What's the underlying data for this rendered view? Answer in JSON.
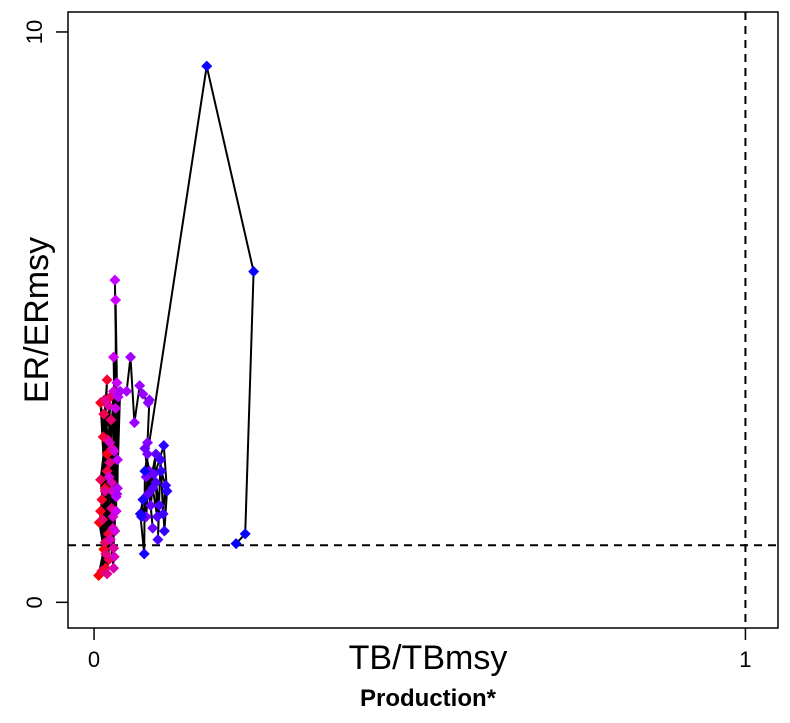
{
  "chart_data": {
    "type": "scatter",
    "connected": true,
    "title": "",
    "xlabel": "TB/TBmsy",
    "ylabel": "ER/ERmsy",
    "subtitle": "Production*",
    "xlim": [
      -0.04,
      1.05
    ],
    "ylim": [
      -0.45,
      10.35
    ],
    "x_ticks": [
      0,
      1
    ],
    "x_tick_labels": [
      "0",
      "1"
    ],
    "y_ticks": [
      0,
      10
    ],
    "y_tick_labels": [
      "0",
      "10"
    ],
    "reference_lines": {
      "vertical_x": 1,
      "horizontal_y": 1.0,
      "style": "dashed"
    },
    "line_color": "#000000",
    "color_gradient": {
      "start": "#ff0000",
      "middle": "#cc00ff",
      "end": "#0000ff",
      "meaning": "time order, early to late"
    },
    "grid": false,
    "legend": "none",
    "points": [
      {
        "x": 0.007,
        "y": 0.47
      },
      {
        "x": 0.015,
        "y": 0.93
      },
      {
        "x": 0.008,
        "y": 1.4
      },
      {
        "x": 0.017,
        "y": 2.0
      },
      {
        "x": 0.01,
        "y": 3.5
      },
      {
        "x": 0.02,
        "y": 2.6
      },
      {
        "x": 0.01,
        "y": 1.6
      },
      {
        "x": 0.018,
        "y": 0.6
      },
      {
        "x": 0.012,
        "y": 1.8
      },
      {
        "x": 0.02,
        "y": 3.9
      },
      {
        "x": 0.014,
        "y": 2.9
      },
      {
        "x": 0.022,
        "y": 1.2
      },
      {
        "x": 0.012,
        "y": 0.55
      },
      {
        "x": 0.02,
        "y": 2.3
      },
      {
        "x": 0.015,
        "y": 3.3
      },
      {
        "x": 0.023,
        "y": 0.75
      },
      {
        "x": 0.01,
        "y": 2.15
      },
      {
        "x": 0.025,
        "y": 3.6
      },
      {
        "x": 0.017,
        "y": 1.05
      },
      {
        "x": 0.021,
        "y": 2.85
      },
      {
        "x": 0.013,
        "y": 1.45
      },
      {
        "x": 0.026,
        "y": 3.2
      },
      {
        "x": 0.018,
        "y": 0.85
      },
      {
        "x": 0.024,
        "y": 2.45
      },
      {
        "x": 0.016,
        "y": 3.55
      },
      {
        "x": 0.027,
        "y": 1.65
      },
      {
        "x": 0.02,
        "y": 0.5
      },
      {
        "x": 0.028,
        "y": 2.7
      },
      {
        "x": 0.017,
        "y": 1.95
      },
      {
        "x": 0.03,
        "y": 0.95
      },
      {
        "x": 0.022,
        "y": 3.45
      },
      {
        "x": 0.029,
        "y": 1.3
      },
      {
        "x": 0.027,
        "y": 2.1
      },
      {
        "x": 0.03,
        "y": 0.6
      },
      {
        "x": 0.025,
        "y": 1.1
      },
      {
        "x": 0.028,
        "y": 1.95
      },
      {
        "x": 0.031,
        "y": 0.8
      },
      {
        "x": 0.024,
        "y": 2.8
      },
      {
        "x": 0.029,
        "y": 1.5
      },
      {
        "x": 0.03,
        "y": 3.7
      },
      {
        "x": 0.023,
        "y": 2.2
      },
      {
        "x": 0.032,
        "y": 1.25
      },
      {
        "x": 0.031,
        "y": 2.65
      },
      {
        "x": 0.033,
        "y": 3.4
      },
      {
        "x": 0.03,
        "y": 4.3
      },
      {
        "x": 0.034,
        "y": 1.6
      },
      {
        "x": 0.033,
        "y": 5.3
      },
      {
        "x": 0.035,
        "y": 3.85
      },
      {
        "x": 0.032,
        "y": 5.65
      },
      {
        "x": 0.036,
        "y": 2.5
      },
      {
        "x": 0.034,
        "y": 1.85
      },
      {
        "x": 0.037,
        "y": 3.6
      },
      {
        "x": 0.036,
        "y": 2.0
      },
      {
        "x": 0.035,
        "y": 1.9
      },
      {
        "x": 0.04,
        "y": 3.7
      },
      {
        "x": 0.05,
        "y": 3.7
      },
      {
        "x": 0.056,
        "y": 4.3
      },
      {
        "x": 0.062,
        "y": 3.15
      },
      {
        "x": 0.07,
        "y": 3.8
      },
      {
        "x": 0.075,
        "y": 3.65
      },
      {
        "x": 0.083,
        "y": 3.5
      },
      {
        "x": 0.085,
        "y": 3.55
      },
      {
        "x": 0.082,
        "y": 2.8
      },
      {
        "x": 0.08,
        "y": 2.2
      },
      {
        "x": 0.082,
        "y": 2.6
      },
      {
        "x": 0.08,
        "y": 1.5
      },
      {
        "x": 0.085,
        "y": 2.3
      },
      {
        "x": 0.078,
        "y": 2.7
      },
      {
        "x": 0.09,
        "y": 1.3
      },
      {
        "x": 0.087,
        "y": 1.7
      },
      {
        "x": 0.092,
        "y": 2.25
      },
      {
        "x": 0.083,
        "y": 1.9
      },
      {
        "x": 0.095,
        "y": 2.6
      },
      {
        "x": 0.09,
        "y": 2.0
      },
      {
        "x": 0.097,
        "y": 1.5
      },
      {
        "x": 0.095,
        "y": 2.1
      },
      {
        "x": 0.1,
        "y": 1.7
      },
      {
        "x": 0.098,
        "y": 1.1
      },
      {
        "x": 0.102,
        "y": 2.5
      },
      {
        "x": 0.106,
        "y": 1.55
      },
      {
        "x": 0.11,
        "y": 2.05
      },
      {
        "x": 0.103,
        "y": 2.3
      },
      {
        "x": 0.108,
        "y": 1.25
      },
      {
        "x": 0.112,
        "y": 1.95
      },
      {
        "x": 0.107,
        "y": 2.75
      },
      {
        "x": 0.073,
        "y": 1.5
      },
      {
        "x": 0.075,
        "y": 1.8
      },
      {
        "x": 0.071,
        "y": 1.55
      },
      {
        "x": 0.077,
        "y": 0.85
      },
      {
        "x": 0.078,
        "y": 2.3
      },
      {
        "x": 0.173,
        "y": 9.4
      },
      {
        "x": 0.245,
        "y": 5.8
      },
      {
        "x": 0.232,
        "y": 1.2
      },
      {
        "x": 0.218,
        "y": 1.03
      }
    ]
  }
}
